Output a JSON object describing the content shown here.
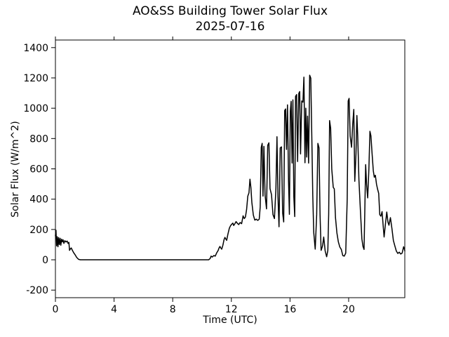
{
  "chart_data": {
    "type": "line",
    "title": "AO&SS Building Tower Solar Flux",
    "subtitle": "2025-07-16",
    "xlabel": "Time (UTC)",
    "ylabel": "Solar Flux (W/m^2)",
    "xlim": [
      0,
      23.83
    ],
    "ylim": [
      -250,
      1450
    ],
    "x_ticks": [
      0,
      4,
      8,
      12,
      16,
      20
    ],
    "y_ticks": [
      -200,
      0,
      200,
      400,
      600,
      800,
      1000,
      1200,
      1400
    ],
    "grid": false,
    "legend": "none",
    "line_color": "#000000",
    "background": "#ffffff",
    "points": [
      [
        0.0,
        158
      ],
      [
        0.04,
        195
      ],
      [
        0.08,
        92
      ],
      [
        0.13,
        152
      ],
      [
        0.17,
        86
      ],
      [
        0.22,
        146
      ],
      [
        0.27,
        100
      ],
      [
        0.32,
        142
      ],
      [
        0.37,
        96
      ],
      [
        0.42,
        136
      ],
      [
        0.47,
        118
      ],
      [
        0.52,
        132
      ],
      [
        0.58,
        108
      ],
      [
        0.64,
        126
      ],
      [
        0.72,
        118
      ],
      [
        0.8,
        124
      ],
      [
        0.86,
        108
      ],
      [
        0.92,
        115
      ],
      [
        0.96,
        62
      ],
      [
        1.02,
        72
      ],
      [
        1.08,
        78
      ],
      [
        1.15,
        64
      ],
      [
        1.25,
        46
      ],
      [
        1.35,
        32
      ],
      [
        1.45,
        16
      ],
      [
        1.58,
        3
      ],
      [
        1.7,
        0
      ],
      [
        3.0,
        0
      ],
      [
        5.0,
        0
      ],
      [
        7.0,
        0
      ],
      [
        9.0,
        0
      ],
      [
        10.45,
        0
      ],
      [
        10.55,
        8
      ],
      [
        10.62,
        24
      ],
      [
        10.7,
        18
      ],
      [
        10.8,
        28
      ],
      [
        10.9,
        24
      ],
      [
        11.0,
        46
      ],
      [
        11.1,
        62
      ],
      [
        11.16,
        78
      ],
      [
        11.22,
        88
      ],
      [
        11.28,
        78
      ],
      [
        11.34,
        70
      ],
      [
        11.42,
        96
      ],
      [
        11.5,
        132
      ],
      [
        11.56,
        148
      ],
      [
        11.62,
        138
      ],
      [
        11.68,
        128
      ],
      [
        11.76,
        168
      ],
      [
        11.86,
        208
      ],
      [
        11.94,
        224
      ],
      [
        12.02,
        234
      ],
      [
        12.1,
        242
      ],
      [
        12.16,
        226
      ],
      [
        12.24,
        238
      ],
      [
        12.32,
        252
      ],
      [
        12.4,
        242
      ],
      [
        12.5,
        232
      ],
      [
        12.6,
        246
      ],
      [
        12.7,
        238
      ],
      [
        12.8,
        290
      ],
      [
        12.88,
        272
      ],
      [
        12.96,
        282
      ],
      [
        13.04,
        332
      ],
      [
        13.12,
        420
      ],
      [
        13.2,
        442
      ],
      [
        13.27,
        532
      ],
      [
        13.33,
        478
      ],
      [
        13.4,
        378
      ],
      [
        13.5,
        295
      ],
      [
        13.6,
        262
      ],
      [
        13.7,
        268
      ],
      [
        13.8,
        260
      ],
      [
        13.9,
        268
      ],
      [
        13.97,
        348
      ],
      [
        14.04,
        742
      ],
      [
        14.1,
        768
      ],
      [
        14.16,
        420
      ],
      [
        14.22,
        748
      ],
      [
        14.3,
        428
      ],
      [
        14.4,
        336
      ],
      [
        14.48,
        755
      ],
      [
        14.56,
        772
      ],
      [
        14.64,
        470
      ],
      [
        14.74,
        430
      ],
      [
        14.84,
        298
      ],
      [
        14.94,
        272
      ],
      [
        15.04,
        472
      ],
      [
        15.11,
        812
      ],
      [
        15.18,
        420
      ],
      [
        15.25,
        218
      ],
      [
        15.33,
        738
      ],
      [
        15.42,
        745
      ],
      [
        15.5,
        308
      ],
      [
        15.57,
        250
      ],
      [
        15.64,
        985
      ],
      [
        15.7,
        995
      ],
      [
        15.76,
        728
      ],
      [
        15.83,
        1022
      ],
      [
        15.9,
        518
      ],
      [
        15.96,
        300
      ],
      [
        16.02,
        978
      ],
      [
        16.08,
        1045
      ],
      [
        16.14,
        638
      ],
      [
        16.2,
        1055
      ],
      [
        16.26,
        418
      ],
      [
        16.32,
        285
      ],
      [
        16.38,
        1078
      ],
      [
        16.45,
        1090
      ],
      [
        16.52,
        648
      ],
      [
        16.6,
        1098
      ],
      [
        16.66,
        1110
      ],
      [
        16.72,
        698
      ],
      [
        16.8,
        1048
      ],
      [
        16.88,
        1040
      ],
      [
        16.95,
        1205
      ],
      [
        17.02,
        640
      ],
      [
        17.08,
        1000
      ],
      [
        17.14,
        678
      ],
      [
        17.2,
        948
      ],
      [
        17.27,
        638
      ],
      [
        17.34,
        1218
      ],
      [
        17.42,
        1198
      ],
      [
        17.49,
        798
      ],
      [
        17.55,
        428
      ],
      [
        17.62,
        180
      ],
      [
        17.72,
        70
      ],
      [
        17.82,
        298
      ],
      [
        17.9,
        768
      ],
      [
        17.98,
        740
      ],
      [
        18.05,
        298
      ],
      [
        18.12,
        62
      ],
      [
        18.22,
        92
      ],
      [
        18.3,
        150
      ],
      [
        18.4,
        58
      ],
      [
        18.5,
        20
      ],
      [
        18.58,
        62
      ],
      [
        18.64,
        300
      ],
      [
        18.7,
        918
      ],
      [
        18.77,
        868
      ],
      [
        18.85,
        598
      ],
      [
        18.95,
        478
      ],
      [
        19.02,
        468
      ],
      [
        19.1,
        278
      ],
      [
        19.2,
        178
      ],
      [
        19.3,
        118
      ],
      [
        19.4,
        84
      ],
      [
        19.5,
        68
      ],
      [
        19.6,
        28
      ],
      [
        19.7,
        24
      ],
      [
        19.8,
        44
      ],
      [
        19.9,
        400
      ],
      [
        19.97,
        1048
      ],
      [
        20.03,
        1065
      ],
      [
        20.1,
        818
      ],
      [
        20.2,
        742
      ],
      [
        20.28,
        898
      ],
      [
        20.35,
        992
      ],
      [
        20.42,
        518
      ],
      [
        20.5,
        698
      ],
      [
        20.56,
        952
      ],
      [
        20.62,
        818
      ],
      [
        20.7,
        528
      ],
      [
        20.8,
        328
      ],
      [
        20.9,
        138
      ],
      [
        20.98,
        88
      ],
      [
        21.05,
        68
      ],
      [
        21.1,
        298
      ],
      [
        21.16,
        628
      ],
      [
        21.22,
        498
      ],
      [
        21.3,
        408
      ],
      [
        21.38,
        598
      ],
      [
        21.45,
        848
      ],
      [
        21.52,
        818
      ],
      [
        21.6,
        698
      ],
      [
        21.68,
        588
      ],
      [
        21.75,
        545
      ],
      [
        21.82,
        558
      ],
      [
        21.9,
        498
      ],
      [
        21.97,
        468
      ],
      [
        22.05,
        438
      ],
      [
        22.12,
        298
      ],
      [
        22.2,
        288
      ],
      [
        22.28,
        318
      ],
      [
        22.35,
        228
      ],
      [
        22.42,
        150
      ],
      [
        22.5,
        228
      ],
      [
        22.6,
        315
      ],
      [
        22.68,
        248
      ],
      [
        22.75,
        228
      ],
      [
        22.85,
        278
      ],
      [
        22.95,
        208
      ],
      [
        23.05,
        128
      ],
      [
        23.15,
        92
      ],
      [
        23.25,
        58
      ],
      [
        23.35,
        42
      ],
      [
        23.45,
        50
      ],
      [
        23.55,
        38
      ],
      [
        23.65,
        44
      ],
      [
        23.75,
        86
      ],
      [
        23.8,
        70
      ],
      [
        23.83,
        58
      ]
    ]
  }
}
